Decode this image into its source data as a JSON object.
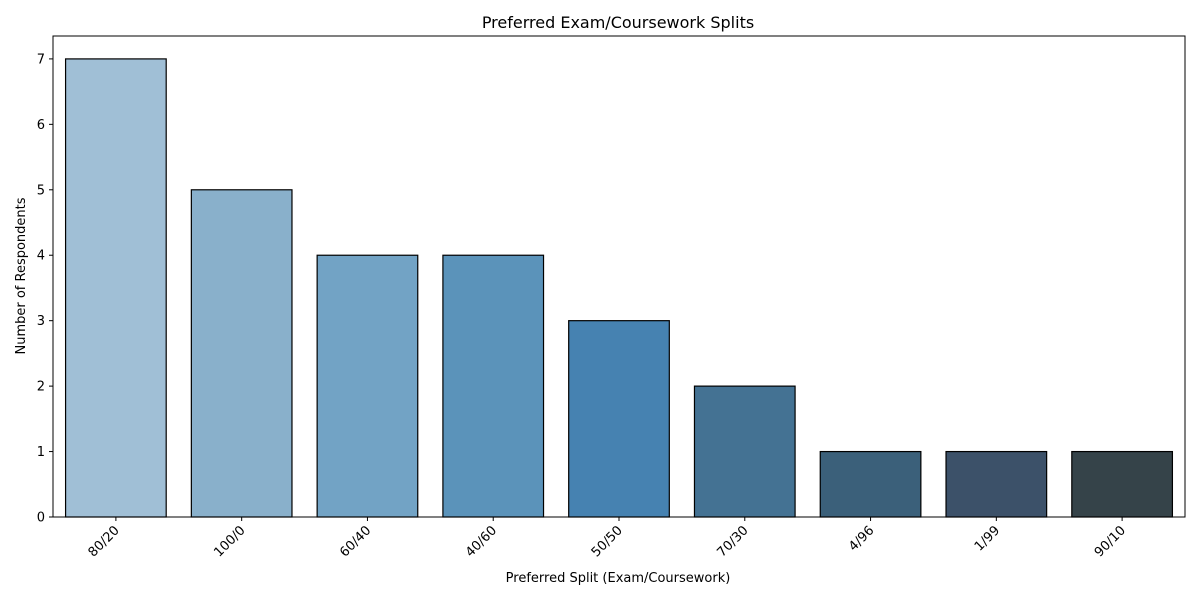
{
  "chart_data": {
    "type": "bar",
    "title": "Preferred Exam/Coursework Splits",
    "xlabel": "Preferred Split (Exam/Coursework)",
    "ylabel": "Number of Respondents",
    "categories": [
      "80/20",
      "100/0",
      "60/40",
      "40/60",
      "50/50",
      "70/30",
      "4/96",
      "1/99",
      "90/10"
    ],
    "values": [
      7,
      5,
      4,
      4,
      3,
      2,
      1,
      1,
      1
    ],
    "colors": [
      "#a0bfd6",
      "#89b0cb",
      "#72a3c5",
      "#5b93ba",
      "#4682b1",
      "#447293",
      "#3b607a",
      "#3c5169",
      "#354349"
    ],
    "ylim": [
      0,
      7.35
    ],
    "yticks": [
      0,
      1,
      2,
      3,
      4,
      5,
      6,
      7
    ],
    "grid": false,
    "bar_edge_color": "#000000"
  }
}
